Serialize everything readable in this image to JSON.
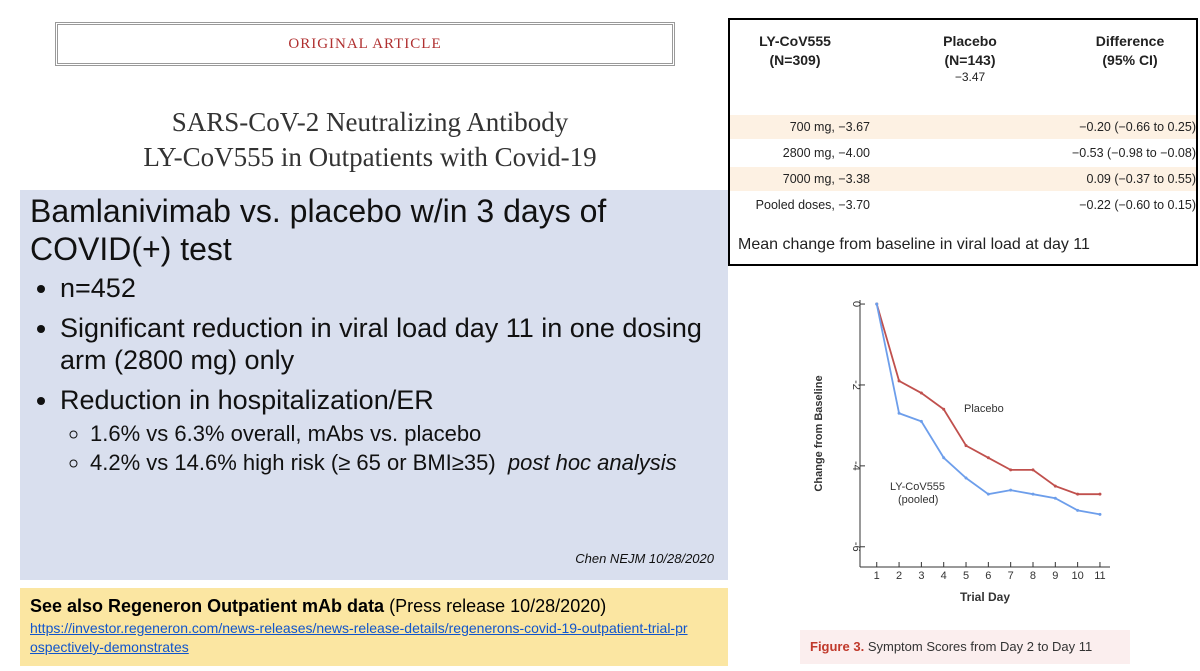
{
  "article": {
    "label": "ORIGINAL ARTICLE",
    "title_lines": [
      "SARS-CoV-2 Neutralizing Antibody",
      "LY-CoV555 in Outpatients with Covid-19"
    ]
  },
  "summary": {
    "heading": "Bamlanivimab vs. placebo w/in 3 days of COVID(+) test",
    "bullets": [
      {
        "text": "n=452"
      },
      {
        "text": "Significant reduction in viral load day 11 in one dosing arm (2800 mg) only"
      },
      {
        "text": "Reduction in hospitalization/ER",
        "sub": [
          {
            "text": "1.6% vs 6.3% overall, mAbs vs. placebo"
          },
          {
            "text": "4.2% vs 14.6% high risk (≥ 65 or BMI≥35)",
            "emphasis": "post hoc analysis"
          }
        ]
      }
    ],
    "citation": "Chen NEJM  10/28/2020"
  },
  "footer": {
    "lead": "See also Regeneron Outpatient mAb data",
    "note": "(Press release 10/28/2020)",
    "link": "https://investor.regeneron.com/news-releases/news-release-details/regenerons-covid-19-outpatient-trial-prospectively-demonstrates"
  },
  "table": {
    "headers": [
      [
        "LY-CoV555",
        "(N=309)"
      ],
      [
        "Placebo",
        "(N=143)",
        "−3.47"
      ],
      [
        "Difference",
        "(95% CI)"
      ]
    ],
    "rows": [
      [
        "700 mg, −3.67",
        "−0.20 (−0.66 to 0.25)"
      ],
      [
        "2800 mg, −4.00",
        "−0.53 (−0.98 to −0.08)"
      ],
      [
        "7000 mg, −3.38",
        "0.09 (−0.37 to 0.55)"
      ],
      [
        "Pooled doses, −3.70",
        "−0.22 (−0.60 to 0.15)"
      ]
    ],
    "caption": "Mean change from baseline in viral load at day 11"
  },
  "chart_data": {
    "type": "line",
    "x": [
      1,
      2,
      3,
      4,
      5,
      6,
      7,
      8,
      9,
      10,
      11
    ],
    "series": [
      {
        "name": "Placebo",
        "color": "#c0504d",
        "values": [
          0,
          -1.9,
          -2.2,
          -2.6,
          -3.5,
          -3.8,
          -4.1,
          -4.1,
          -4.5,
          -4.7,
          -4.7
        ]
      },
      {
        "name": "LY-CoV555 (pooled)",
        "color": "#6d9eeb",
        "values": [
          0,
          -2.7,
          -2.9,
          -3.8,
          -4.3,
          -4.7,
          -4.6,
          -4.7,
          -4.8,
          -5.1,
          -5.2
        ]
      }
    ],
    "xlim": [
      0.25,
      11.45
    ],
    "ylim": [
      -6.5,
      0.1
    ],
    "xticks": [
      1,
      2,
      3,
      4,
      5,
      6,
      7,
      8,
      9,
      10,
      11
    ],
    "yticks": [
      0,
      -2,
      -4,
      -6
    ],
    "xlabel": "Trial Day",
    "ylabel": "Change from Baseline",
    "caption_label": "Figure 3.",
    "caption": "Symptom Scores from Day 2 to Day 11"
  }
}
